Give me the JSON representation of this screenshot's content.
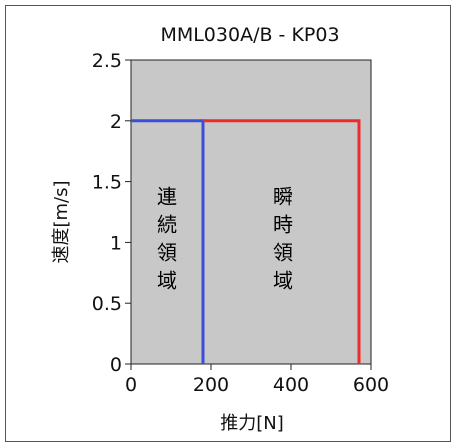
{
  "chart_data": {
    "type": "line",
    "title": "MML030A/B - KP03",
    "xlabel": "推力[N]",
    "ylabel": "速度[m/s]",
    "xlim": [
      0,
      600
    ],
    "ylim": [
      0,
      2.5
    ],
    "x_ticks": [
      "0",
      "200",
      "400",
      "600"
    ],
    "y_ticks": [
      "0",
      "0.5",
      "1",
      "1.5",
      "2",
      "2.5"
    ],
    "plot_background": "#c8c8c8",
    "grid": false,
    "series": [
      {
        "color": "#3b4fd6",
        "points": [
          [
            0,
            2
          ],
          [
            180,
            2
          ],
          [
            180,
            0
          ]
        ]
      },
      {
        "color": "#ee2b2b",
        "points": [
          [
            180,
            2
          ],
          [
            570,
            2
          ],
          [
            570,
            0
          ]
        ]
      }
    ],
    "region_labels": [
      {
        "text": [
          "連",
          "続",
          "領",
          "域"
        ],
        "x": 90,
        "y_top": 1.5
      },
      {
        "text": [
          "瞬",
          "時",
          "領",
          "域"
        ],
        "x": 380,
        "y_top": 1.5
      }
    ]
  }
}
